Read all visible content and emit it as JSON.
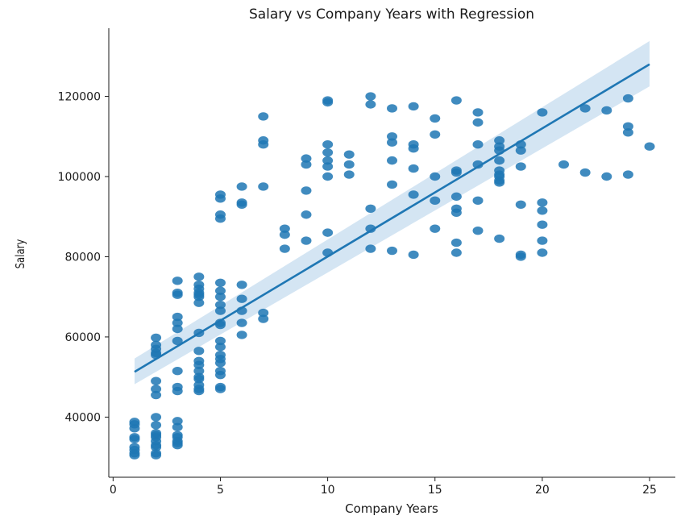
{
  "chart_data": {
    "type": "scatter",
    "title": "Salary vs Company Years with Regression",
    "xlabel": "Company Years",
    "ylabel": "Salary",
    "xlim": [
      -0.2,
      26.2
    ],
    "ylim": [
      25000,
      137000
    ],
    "xticks": [
      0,
      5,
      10,
      15,
      20,
      25
    ],
    "yticks": [
      40000,
      60000,
      80000,
      100000,
      120000
    ],
    "xtick_labels": [
      "0",
      "5",
      "10",
      "15",
      "20",
      "25"
    ],
    "ytick_labels": [
      "40000",
      "60000",
      "80000",
      "100000",
      "120000"
    ],
    "grid": false,
    "colors": {
      "points": "#1f77b4",
      "line": "#1f77b4",
      "band": "#c6dcef"
    },
    "regression": {
      "x": [
        1,
        25
      ],
      "y": [
        51300,
        128000
      ],
      "ci_lower": [
        48200,
        122500
      ],
      "ci_upper": [
        54600,
        133800
      ]
    },
    "points": {
      "x": [
        1,
        1,
        1,
        1,
        1,
        1,
        1,
        1,
        1,
        2,
        2,
        2,
        2,
        2,
        2,
        2,
        2,
        2,
        2,
        2,
        2,
        2,
        2,
        2,
        2,
        2,
        2,
        3,
        3,
        3,
        3,
        3,
        3,
        3,
        3,
        3,
        3,
        3,
        3,
        3,
        3,
        3,
        3,
        3,
        4,
        4,
        4,
        4,
        4,
        4,
        4,
        4,
        4,
        4,
        4,
        4,
        4,
        4,
        4,
        4,
        4,
        5,
        5,
        5,
        5,
        5,
        5,
        5,
        5,
        5,
        5,
        5,
        5,
        5,
        5,
        5,
        5,
        5,
        5,
        5,
        5,
        6,
        6,
        6,
        6,
        6,
        6,
        6,
        6,
        7,
        7,
        7,
        7,
        7,
        7,
        8,
        8,
        8,
        9,
        9,
        9,
        9,
        9,
        10,
        10,
        10,
        10,
        10,
        10,
        10,
        10,
        10,
        11,
        11,
        11,
        12,
        12,
        12,
        12,
        12,
        13,
        13,
        13,
        13,
        13,
        13,
        14,
        14,
        14,
        14,
        14,
        14,
        15,
        15,
        15,
        15,
        15,
        16,
        16,
        16,
        16,
        16,
        16,
        16,
        16,
        17,
        17,
        17,
        17,
        17,
        17,
        18,
        18,
        18,
        18,
        18,
        18,
        18,
        18,
        18,
        18,
        19,
        19,
        19,
        19,
        19,
        19,
        20,
        20,
        20,
        20,
        20,
        20,
        21,
        22,
        22,
        23,
        23,
        24,
        24,
        24,
        24,
        25
      ],
      "y": [
        38800,
        38200,
        37200,
        35000,
        34500,
        32500,
        31800,
        31000,
        30500,
        59800,
        58000,
        57000,
        56000,
        55500,
        49000,
        47000,
        45500,
        40000,
        38000,
        36000,
        35500,
        35000,
        34000,
        33000,
        32500,
        31000,
        30500,
        74000,
        71000,
        70500,
        65000,
        63500,
        62000,
        59000,
        51500,
        47500,
        46500,
        39000,
        37500,
        35500,
        35000,
        34000,
        33500,
        33000,
        75000,
        73000,
        72000,
        71000,
        70500,
        70000,
        68500,
        61000,
        56500,
        54000,
        53000,
        51500,
        50000,
        49500,
        48000,
        47000,
        46500,
        95500,
        94500,
        90500,
        89500,
        73500,
        71500,
        70000,
        68000,
        66500,
        63500,
        63000,
        59000,
        57500,
        55500,
        54500,
        53500,
        51500,
        50500,
        47500,
        47000,
        97500,
        93500,
        93000,
        73000,
        69500,
        66500,
        63500,
        60500,
        115000,
        109000,
        108000,
        97500,
        66000,
        64500,
        87000,
        85500,
        82000,
        104500,
        103000,
        96500,
        90500,
        84000,
        119000,
        118500,
        108000,
        106000,
        104000,
        102500,
        100000,
        86000,
        81000,
        105500,
        103000,
        100500,
        120000,
        118000,
        92000,
        87000,
        82000,
        117000,
        110000,
        108500,
        104000,
        98000,
        81500,
        117500,
        108000,
        107000,
        102000,
        95500,
        80500,
        114500,
        110500,
        100000,
        94000,
        87000,
        119000,
        101500,
        101000,
        95000,
        92000,
        91000,
        83500,
        81000,
        116000,
        113500,
        108000,
        103000,
        94000,
        86500,
        109000,
        107500,
        106500,
        104000,
        101500,
        100500,
        100000,
        99000,
        98500,
        84500,
        108000,
        106500,
        102500,
        93000,
        80500,
        80000,
        116000,
        93500,
        91500,
        88000,
        84000,
        81000,
        103000,
        117000,
        101000,
        116500,
        100000,
        119500,
        112500,
        111000,
        100500,
        107500
      ]
    }
  }
}
